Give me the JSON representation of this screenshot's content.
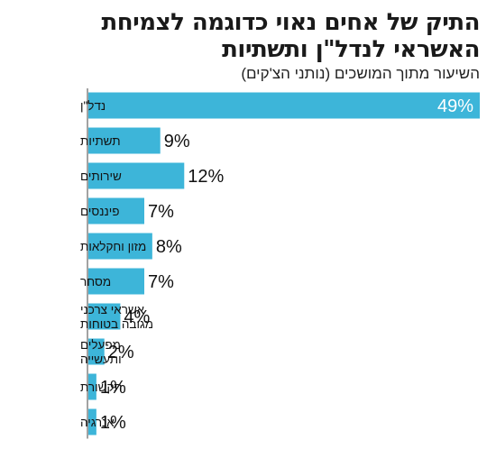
{
  "title": "התיק של אחים נאוי כדוגמה לצמיחת האשראי לנדל\"ן ותשתיות",
  "subtitle": "השיעור מתוך המושכים (נותני הצ'קים)",
  "colors": {
    "bar": "#3db5d9",
    "axis": "#444444"
  },
  "chart_data": {
    "type": "bar",
    "orientation": "horizontal",
    "title": "התיק של אחים נאוי כדוגמה לצמיחת האשראי לנדל\"ן ותשתיות",
    "subtitle": "השיעור מתוך המושכים (נותני הצ'קים)",
    "categories": [
      [
        "נדל\"ן"
      ],
      [
        "תשתיות"
      ],
      [
        "שירותים"
      ],
      [
        "פיננסים"
      ],
      [
        "מזון וחקלאות"
      ],
      [
        "מסחר"
      ],
      [
        "אשראי צרכני",
        "מגובה בטוחות"
      ],
      [
        "מפעלים",
        "ותעשייה"
      ],
      [
        "תקשורת"
      ],
      [
        "אנרגיה"
      ]
    ],
    "values": [
      49,
      9,
      12,
      7,
      8,
      7,
      4,
      2,
      1,
      1
    ],
    "value_labels": [
      "49%",
      "9%",
      "12%",
      "7%",
      "8%",
      "7%",
      "4%",
      "2%",
      "1%",
      "1%"
    ],
    "unit": "%",
    "grid": false
  }
}
